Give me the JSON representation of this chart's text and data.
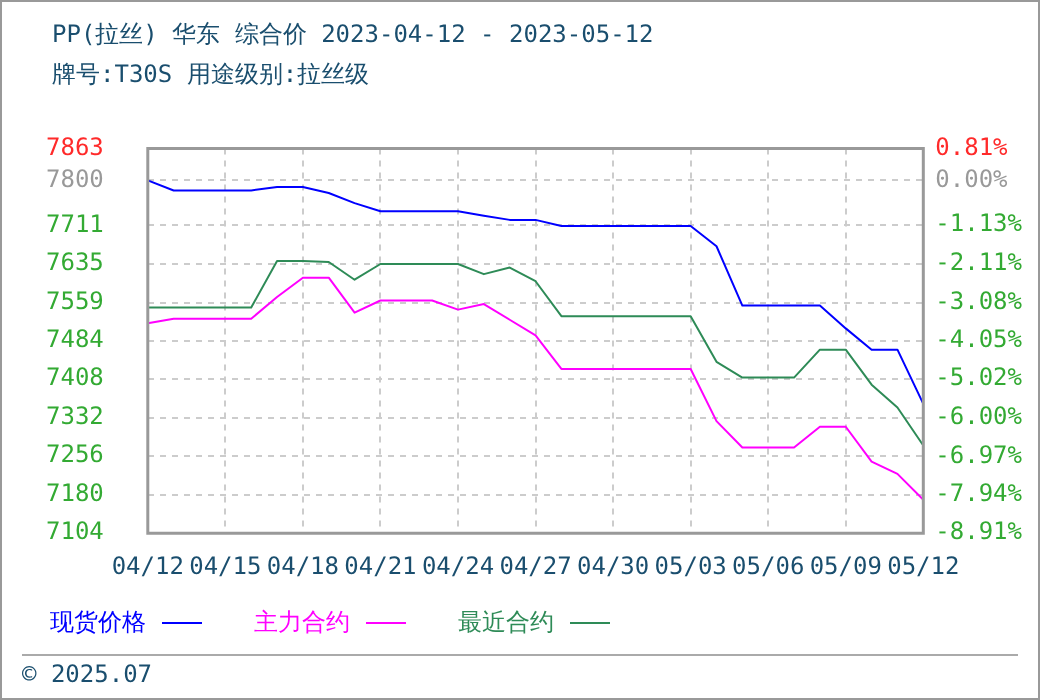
{
  "chart_data": {
    "type": "line",
    "title": "PP(拉丝) 华东 综合价 2023-04-12 - 2023-05-12",
    "subtitle": "牌号:T30S 用途级别:拉丝级",
    "categories": [
      "04/12",
      null,
      null,
      "04/15",
      null,
      null,
      "04/18",
      null,
      null,
      "04/21",
      null,
      null,
      "04/24",
      null,
      null,
      "04/27",
      null,
      null,
      "04/30",
      null,
      null,
      "05/03",
      null,
      null,
      "05/06",
      null,
      null,
      "05/09",
      null,
      null,
      "05/12"
    ],
    "series": [
      {
        "name": "现货价格",
        "color": "#0000ff",
        "values": [
          7800,
          7780,
          7780,
          7780,
          7780,
          7787,
          7787,
          7775,
          7755,
          7739,
          7739,
          7739,
          7739,
          7730,
          7722,
          7722,
          7710,
          7710,
          7710,
          7710,
          7710,
          7710,
          7670,
          7553,
          7553,
          7553,
          7553,
          7508,
          7466,
          7466,
          7359
        ]
      },
      {
        "name": "主力合约",
        "color": "#ff00ff",
        "values": [
          7518,
          7527,
          7527,
          7527,
          7527,
          7570,
          7608,
          7608,
          7539,
          7563,
          7563,
          7563,
          7545,
          7556,
          7525,
          7494,
          7428,
          7428,
          7428,
          7428,
          7428,
          7428,
          7325,
          7273,
          7273,
          7273,
          7314,
          7314,
          7245,
          7221,
          7170
        ]
      },
      {
        "name": "最近合约",
        "color": "#2e8b57",
        "values": [
          7549,
          7549,
          7549,
          7549,
          7549,
          7641,
          7641,
          7639,
          7604,
          7635,
          7635,
          7635,
          7635,
          7615,
          7628,
          7601,
          7532,
          7532,
          7532,
          7532,
          7532,
          7532,
          7442,
          7411,
          7411,
          7411,
          7466,
          7466,
          7397,
          7352,
          7277
        ]
      }
    ],
    "ylim": [
      7104,
      7863
    ],
    "yticks": [
      7104,
      7180,
      7256,
      7332,
      7408,
      7484,
      7559,
      7635,
      7711,
      7800,
      7863
    ],
    "y2lim": [
      -8.91,
      0.81
    ],
    "y2ticks": [
      {
        "value": -8.91,
        "label": "-8.91%"
      },
      {
        "value": -7.94,
        "label": "-7.94%"
      },
      {
        "value": -6.97,
        "label": "-6.97%"
      },
      {
        "value": -6.0,
        "label": "-6.00%"
      },
      {
        "value": -5.02,
        "label": "-5.02%"
      },
      {
        "value": -4.05,
        "label": "-4.05%"
      },
      {
        "value": -3.08,
        "label": "-3.08%"
      },
      {
        "value": -2.11,
        "label": "-2.11%"
      },
      {
        "value": -1.13,
        "label": "-1.13%"
      },
      {
        "value": 0.0,
        "label": "0.00%"
      },
      {
        "value": 0.81,
        "label": "0.81%"
      }
    ],
    "grid": true,
    "legend": "bottom",
    "marker": "none",
    "line_style": "solid",
    "annotations": [
      "© 2025.07"
    ]
  }
}
